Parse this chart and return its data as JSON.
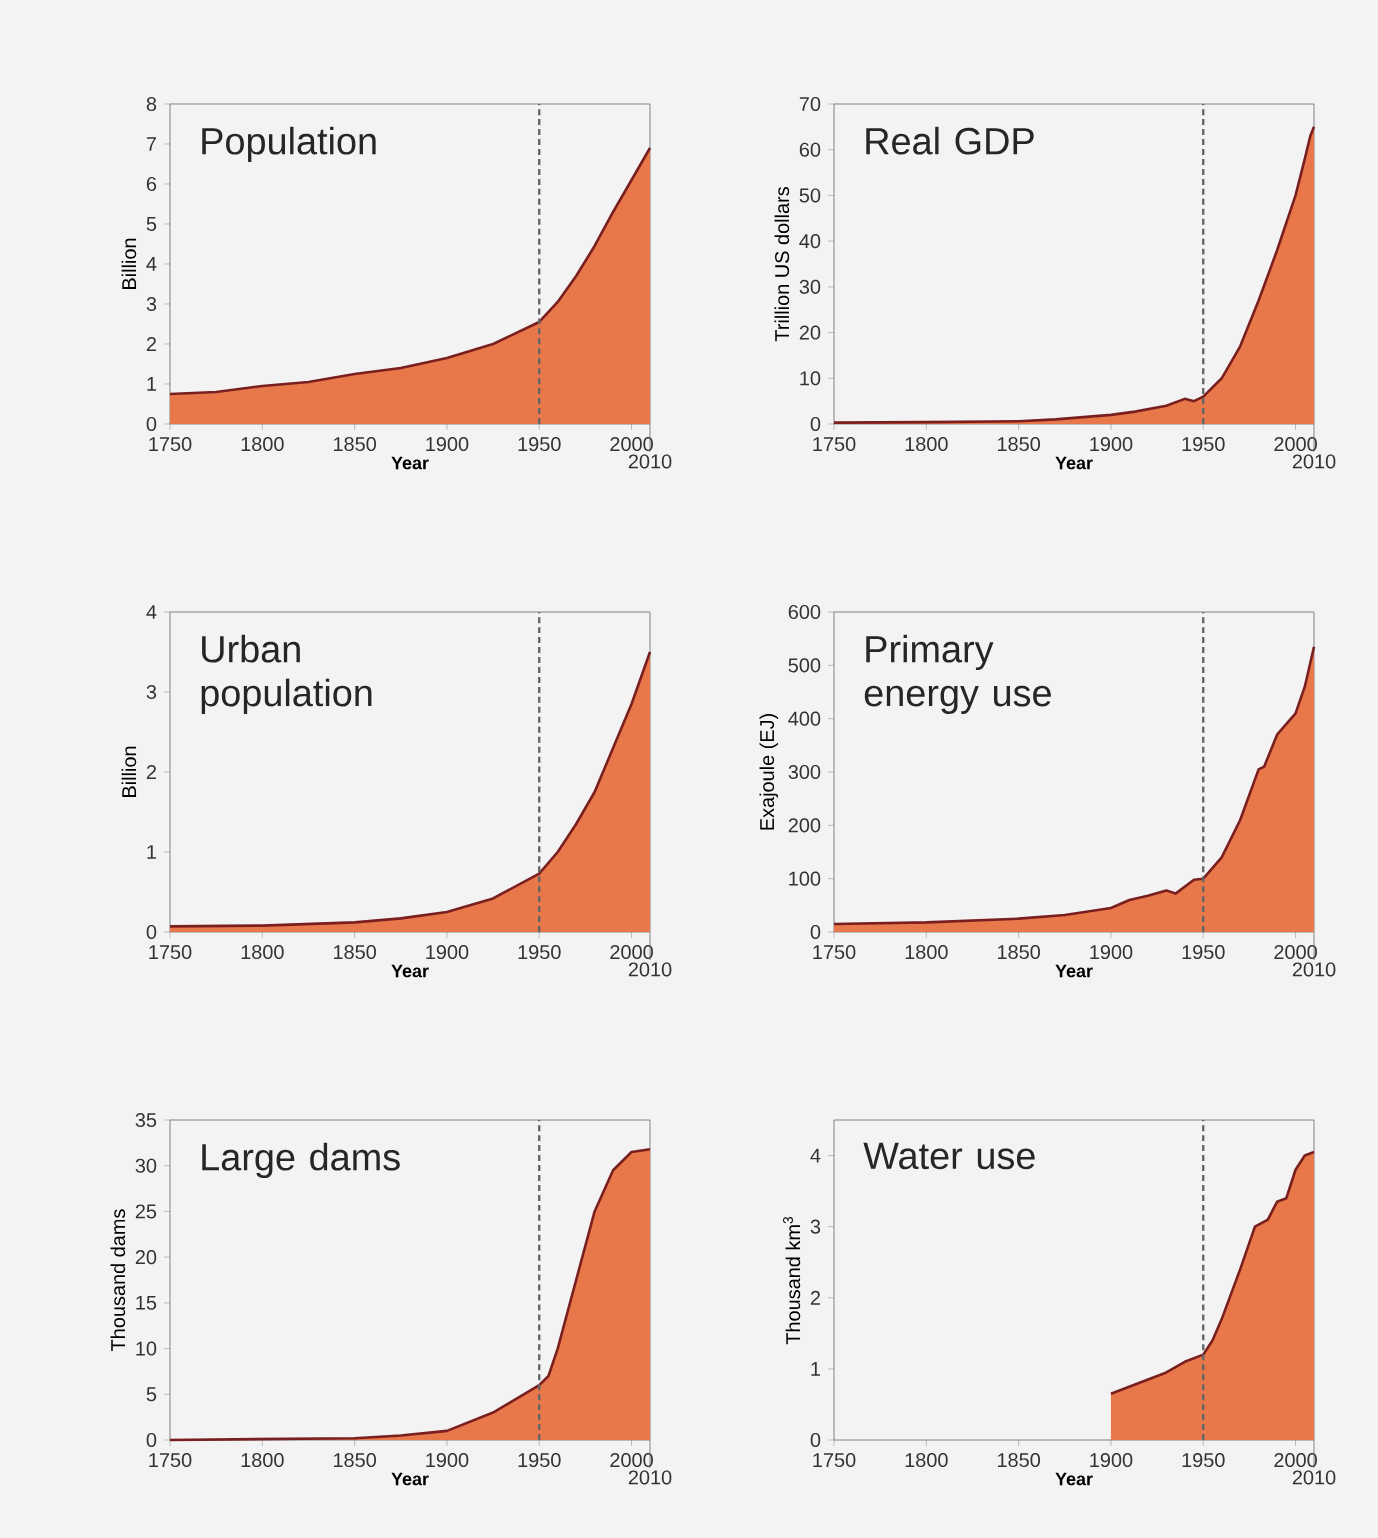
{
  "chart_data": [
    {
      "type": "area",
      "title": "Population",
      "xlabel": "Year",
      "ylabel": "Billion",
      "color": "#e8774a",
      "xlim": [
        1750,
        2010
      ],
      "xticks": [
        1750,
        1800,
        1850,
        1900,
        1950,
        2000
      ],
      "annotations": [
        "2010"
      ],
      "ylim": [
        0,
        8
      ],
      "yticks": [
        0,
        1,
        2,
        3,
        4,
        5,
        6,
        7,
        8
      ],
      "ref_lines": [
        {
          "axis": "x",
          "value": 1950,
          "color": "#666666",
          "line_style": "dashed"
        }
      ],
      "x": [
        1750,
        1775,
        1800,
        1825,
        1850,
        1875,
        1900,
        1925,
        1950,
        1960,
        1970,
        1980,
        1990,
        2000,
        2010
      ],
      "values": [
        0.75,
        0.8,
        0.95,
        1.05,
        1.25,
        1.4,
        1.65,
        2.0,
        2.55,
        3.05,
        3.7,
        4.45,
        5.3,
        6.1,
        6.9
      ]
    },
    {
      "type": "area",
      "title": "Real GDP",
      "xlabel": "Year",
      "ylabel": "Trillion US dollars",
      "color": "#e8774a",
      "xlim": [
        1750,
        2010
      ],
      "xticks": [
        1750,
        1800,
        1850,
        1900,
        1950,
        2000
      ],
      "annotations": [
        "2010"
      ],
      "ylim": [
        0,
        70
      ],
      "yticks": [
        0,
        10,
        20,
        30,
        40,
        50,
        60,
        70
      ],
      "ref_lines": [
        {
          "axis": "x",
          "value": 1950,
          "color": "#666666",
          "line_style": "dashed"
        }
      ],
      "x": [
        1750,
        1800,
        1850,
        1870,
        1900,
        1913,
        1930,
        1940,
        1945,
        1950,
        1960,
        1970,
        1980,
        1990,
        2000,
        2005,
        2008,
        2010
      ],
      "values": [
        0.3,
        0.4,
        0.6,
        1,
        2,
        2.7,
        4,
        5.5,
        5,
        6,
        10,
        17,
        27,
        38,
        50,
        58,
        63,
        65
      ]
    },
    {
      "type": "area",
      "title": "Urban population",
      "xlabel": "Year",
      "ylabel": "Billion",
      "color": "#e8774a",
      "xlim": [
        1750,
        2010
      ],
      "xticks": [
        1750,
        1800,
        1850,
        1900,
        1950,
        2000
      ],
      "annotations": [
        "2010"
      ],
      "ylim": [
        0,
        4
      ],
      "yticks": [
        0,
        1,
        2,
        3,
        4
      ],
      "ref_lines": [
        {
          "axis": "x",
          "value": 1950,
          "color": "#666666",
          "line_style": "dashed"
        }
      ],
      "x": [
        1750,
        1800,
        1850,
        1875,
        1900,
        1925,
        1950,
        1960,
        1970,
        1980,
        1990,
        2000,
        2010
      ],
      "values": [
        0.07,
        0.08,
        0.12,
        0.17,
        0.25,
        0.42,
        0.73,
        1.0,
        1.35,
        1.75,
        2.3,
        2.85,
        3.5
      ]
    },
    {
      "type": "area",
      "title": "Primary energy use",
      "xlabel": "Year",
      "ylabel": "Exajoule (EJ)",
      "color": "#e8774a",
      "xlim": [
        1750,
        2010
      ],
      "xticks": [
        1750,
        1800,
        1850,
        1900,
        1950,
        2000
      ],
      "annotations": [
        "2010"
      ],
      "ylim": [
        0,
        600
      ],
      "yticks": [
        0,
        100,
        200,
        300,
        400,
        500,
        600
      ],
      "ref_lines": [
        {
          "axis": "x",
          "value": 1950,
          "color": "#666666",
          "line_style": "dashed"
        }
      ],
      "x": [
        1750,
        1800,
        1850,
        1875,
        1900,
        1910,
        1920,
        1930,
        1935,
        1945,
        1950,
        1960,
        1970,
        1980,
        1983,
        1990,
        2000,
        2005,
        2010
      ],
      "values": [
        15,
        18,
        25,
        32,
        45,
        60,
        68,
        78,
        72,
        98,
        100,
        140,
        210,
        305,
        310,
        370,
        410,
        460,
        535
      ]
    },
    {
      "type": "area",
      "title": "Large dams",
      "xlabel": "Year",
      "ylabel": "Thousand dams",
      "color": "#e8774a",
      "xlim": [
        1750,
        2010
      ],
      "xticks": [
        1750,
        1800,
        1850,
        1900,
        1950,
        2000
      ],
      "annotations": [
        "2010"
      ],
      "ylim": [
        0,
        35
      ],
      "yticks": [
        0,
        5,
        10,
        15,
        20,
        25,
        30,
        35
      ],
      "ref_lines": [
        {
          "axis": "x",
          "value": 1950,
          "color": "#666666",
          "line_style": "dashed"
        }
      ],
      "x": [
        1750,
        1850,
        1875,
        1900,
        1925,
        1950,
        1955,
        1960,
        1970,
        1980,
        1990,
        2000,
        2010
      ],
      "values": [
        0,
        0.2,
        0.5,
        1,
        3,
        6,
        7,
        10,
        17.5,
        25,
        29.5,
        31.5,
        31.8
      ]
    },
    {
      "type": "area",
      "title": "Water use",
      "xlabel": "Year",
      "ylabel": "Thousand km$^{3}$",
      "color": "#e8774a",
      "xlim": [
        1750,
        2010
      ],
      "xticks": [
        1750,
        1800,
        1850,
        1900,
        1950,
        2000
      ],
      "annotations": [
        "2010"
      ],
      "ylim": [
        0,
        4.5
      ],
      "yticks": [
        0,
        1,
        2,
        3,
        4
      ],
      "ref_lines": [
        {
          "axis": "x",
          "value": 1950,
          "color": "#666666",
          "line_style": "dashed"
        }
      ],
      "x": [
        1900,
        1910,
        1920,
        1930,
        1940,
        1950,
        1955,
        1960,
        1970,
        1978,
        1985,
        1990,
        1995,
        2000,
        2005,
        2010
      ],
      "values": [
        0.65,
        0.75,
        0.85,
        0.95,
        1.1,
        1.2,
        1.4,
        1.7,
        2.4,
        3.0,
        3.1,
        3.35,
        3.4,
        3.8,
        4.0,
        4.05
      ]
    }
  ]
}
